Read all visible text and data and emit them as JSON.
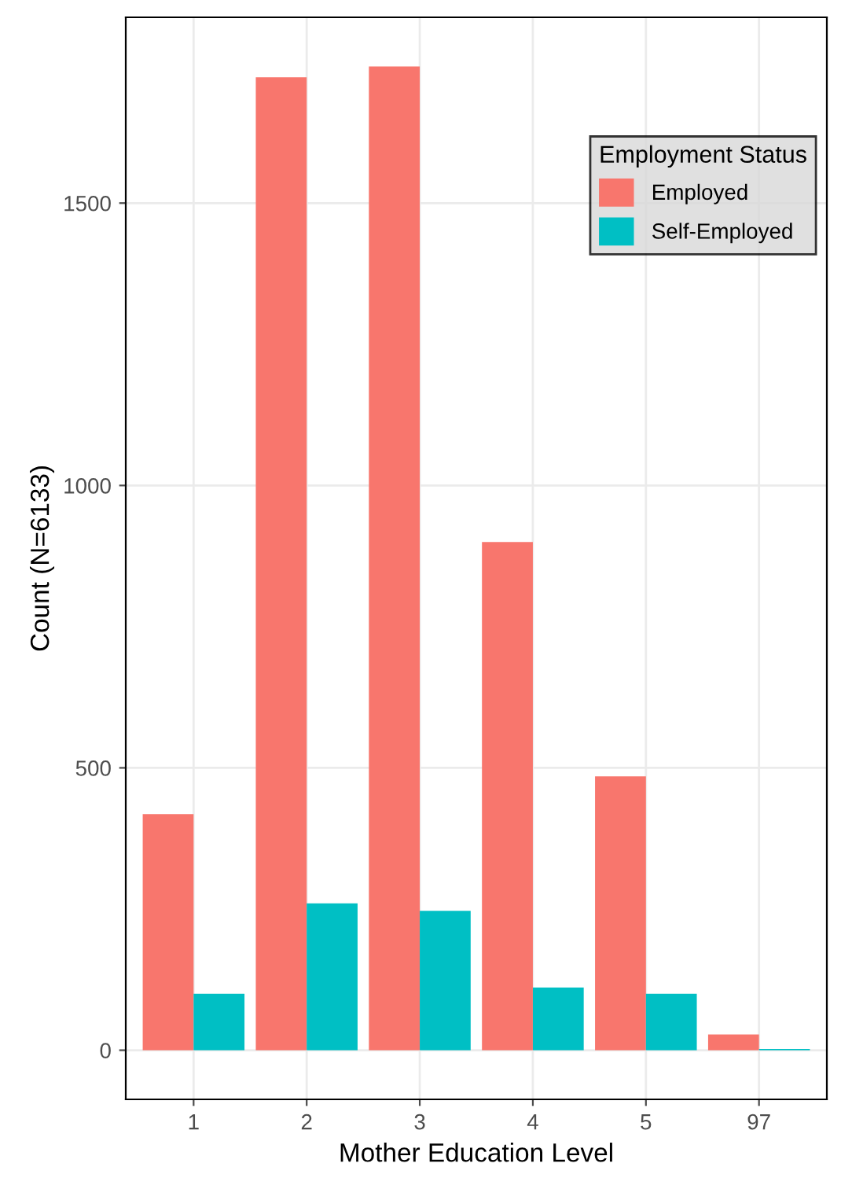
{
  "chart_data": {
    "type": "bar",
    "xlabel": "Mother Education Level",
    "ylabel": "Count (N=6133)",
    "legend_title": "Employment Status",
    "categories": [
      "1",
      "2",
      "3",
      "4",
      "5",
      "97"
    ],
    "series": [
      {
        "name": "Employed",
        "color": "#f8766d",
        "values": [
          418,
          1723,
          1742,
          900,
          485,
          28
        ]
      },
      {
        "name": "Self-Employed",
        "color": "#00bfc4",
        "values": [
          100,
          260,
          247,
          111,
          100,
          2
        ]
      }
    ],
    "ylim": [
      -87,
      1829
    ],
    "yticks": [
      0,
      500,
      1000,
      1500
    ],
    "grid": true,
    "legend": "top right"
  }
}
